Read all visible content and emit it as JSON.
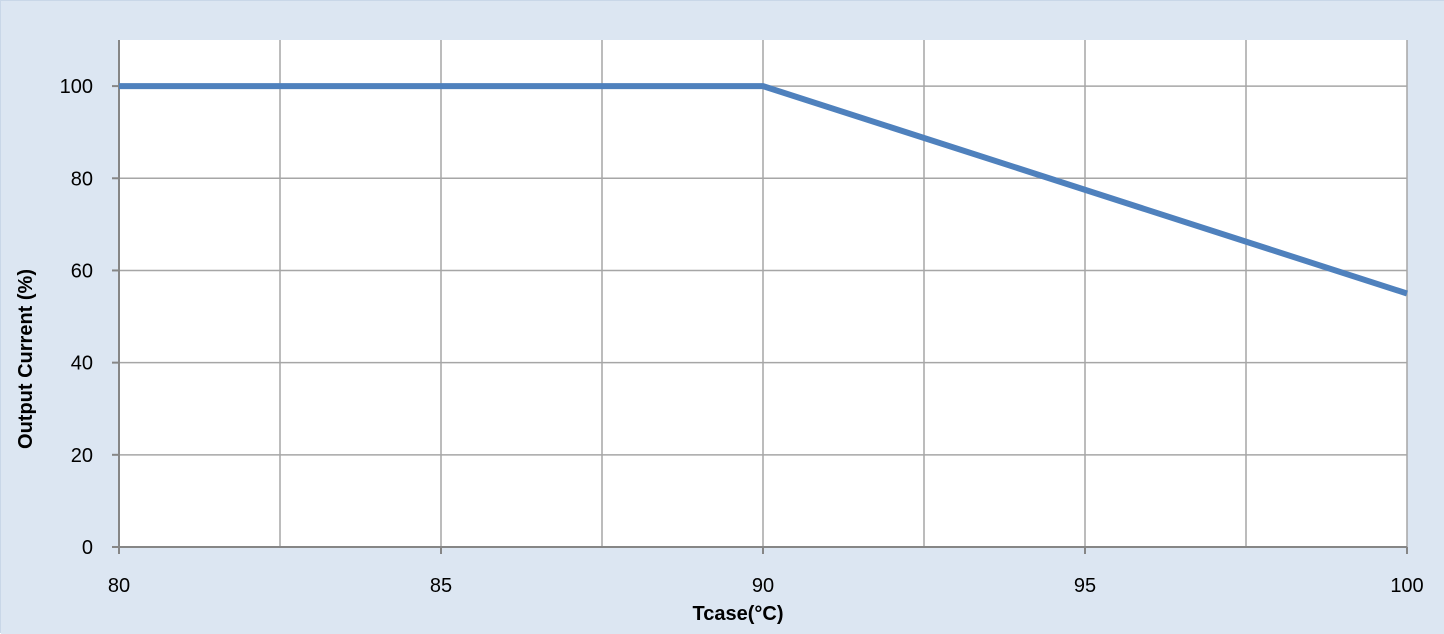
{
  "chart_data": {
    "type": "line",
    "title": "",
    "xlabel": "Tcase(°C)",
    "ylabel": "Output Current (%)",
    "xlim": [
      80,
      100
    ],
    "ylim": [
      0,
      110
    ],
    "x_ticks": [
      80,
      85,
      90,
      95,
      100
    ],
    "x_tick_labels": [
      "80",
      "85",
      "90",
      "95",
      "100"
    ],
    "x_minor_gridlines": [
      82.5,
      87.5,
      92.5,
      97.5
    ],
    "y_ticks": [
      0,
      20,
      40,
      60,
      80,
      100
    ],
    "y_tick_labels": [
      "0",
      "20",
      "40",
      "60",
      "80",
      "100"
    ],
    "grid": true,
    "legend": "none",
    "series": [
      {
        "x": [
          80,
          90,
          100
        ],
        "y": [
          100,
          100,
          55
        ],
        "color": "#4f81bd"
      }
    ]
  },
  "colors": {
    "outer_background": "#dce6f2",
    "plot_background": "#ffffff",
    "grid": "#a6a6a6",
    "axis": "#868686",
    "series": "#4f81bd"
  }
}
